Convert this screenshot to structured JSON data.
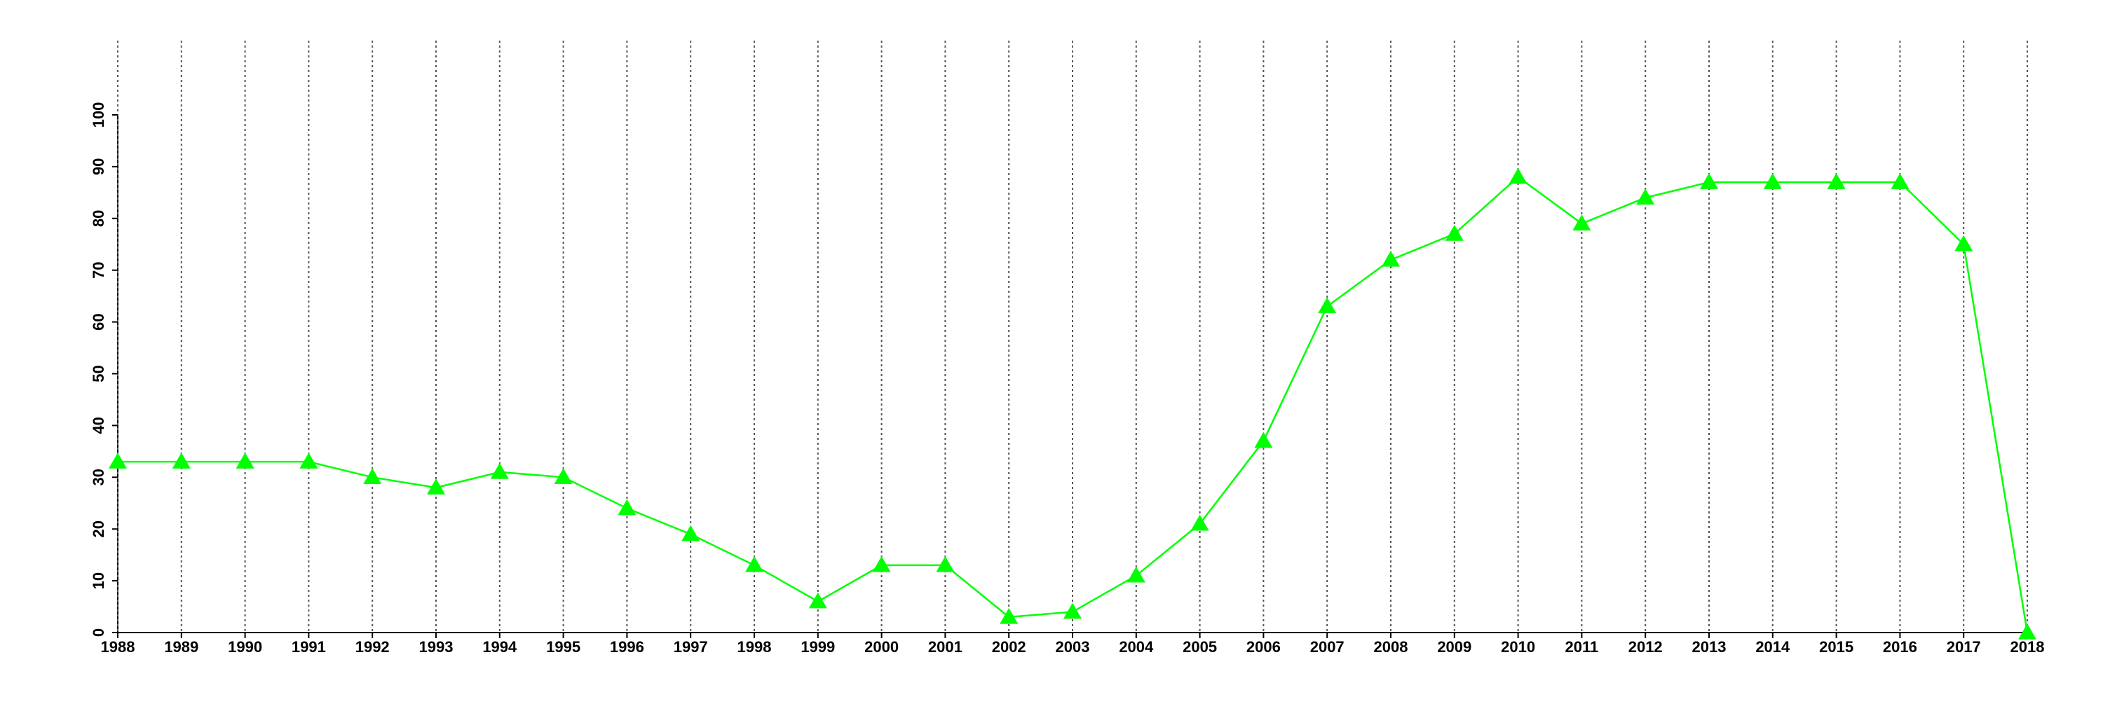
{
  "chart_data": {
    "type": "line",
    "x": [
      1988,
      1989,
      1990,
      1991,
      1992,
      1993,
      1994,
      1995,
      1996,
      1997,
      1998,
      1999,
      2000,
      2001,
      2002,
      2003,
      2004,
      2005,
      2006,
      2007,
      2008,
      2009,
      2010,
      2011,
      2012,
      2013,
      2014,
      2015,
      2016,
      2017,
      2018
    ],
    "series": [
      {
        "color": "#00ff00",
        "marker": "triangle",
        "values": [
          33,
          33,
          33,
          33,
          30,
          28,
          31,
          30,
          24,
          19,
          13,
          6,
          13,
          13,
          3,
          4,
          11,
          21,
          37,
          63,
          72,
          77,
          88,
          79,
          84,
          87,
          87,
          87,
          87,
          75,
          0
        ]
      }
    ],
    "xlim": [
      1988,
      2018
    ],
    "xticks": [
      1988,
      1989,
      1990,
      1991,
      1992,
      1993,
      1994,
      1995,
      1996,
      1997,
      1998,
      1999,
      2000,
      2001,
      2002,
      2003,
      2004,
      2005,
      2006,
      2007,
      2008,
      2009,
      2010,
      2011,
      2012,
      2013,
      2014,
      2015,
      2016,
      2017,
      2018
    ],
    "ylim": [
      0,
      100
    ],
    "yticks": [
      0,
      10,
      20,
      30,
      40,
      50,
      60,
      70,
      80,
      90,
      100
    ],
    "grid": "x"
  }
}
